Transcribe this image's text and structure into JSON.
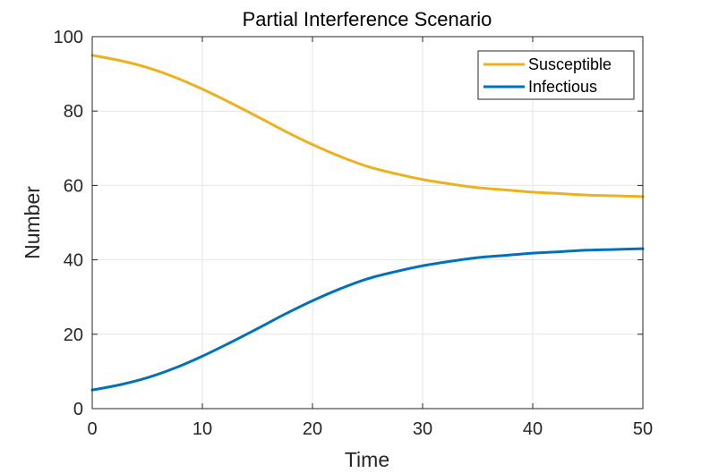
{
  "chart_data": {
    "type": "line",
    "title": "Partial Interference Scenario",
    "xlabel": "Time",
    "ylabel": "Number",
    "xlim": [
      0,
      50
    ],
    "ylim": [
      0,
      100
    ],
    "xticks": [
      0,
      10,
      20,
      30,
      40,
      50
    ],
    "yticks": [
      0,
      20,
      40,
      60,
      80,
      100
    ],
    "grid": true,
    "legend_position": "top-right",
    "x": [
      0,
      2.5,
      5,
      7.5,
      10,
      12.5,
      15,
      17.5,
      20,
      22.5,
      25,
      27.5,
      30,
      32.5,
      35,
      37.5,
      40,
      42.5,
      45,
      47.5,
      50
    ],
    "series": [
      {
        "name": "Susceptible",
        "color": "#EDB120",
        "values": [
          95,
          93.6,
          91.7,
          89.1,
          85.9,
          82.3,
          78.5,
          74.6,
          71.0,
          67.8,
          65.1,
          63.2,
          61.6,
          60.4,
          59.4,
          58.8,
          58.2,
          57.8,
          57.4,
          57.2,
          57.0
        ]
      },
      {
        "name": "Infectious",
        "color": "#0072BD",
        "values": [
          5,
          6.4,
          8.3,
          10.9,
          14.1,
          17.7,
          21.5,
          25.4,
          29.0,
          32.2,
          34.9,
          36.8,
          38.4,
          39.6,
          40.6,
          41.2,
          41.8,
          42.2,
          42.6,
          42.8,
          43.0
        ]
      }
    ]
  }
}
